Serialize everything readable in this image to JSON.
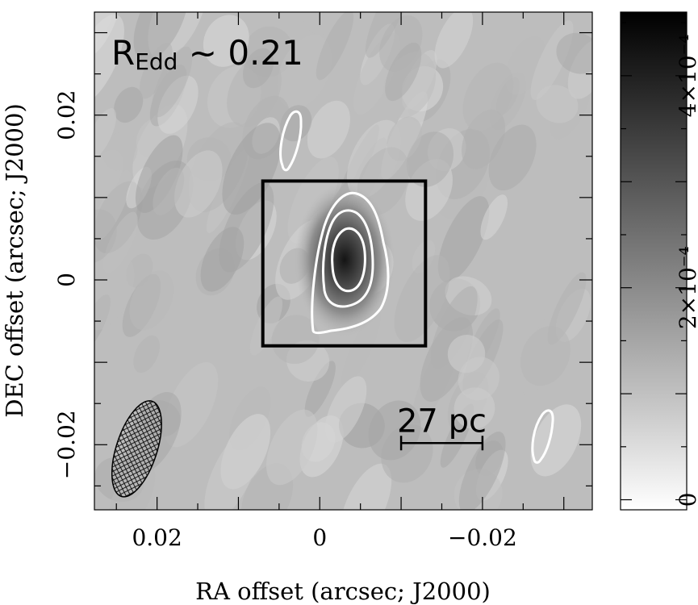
{
  "chart_data": {
    "type": "heatmap",
    "xlabel": "RA offset (arcsec; J2000)",
    "ylabel": "DEC offset (arcsec; J2000)",
    "xlim": [
      0.0277,
      -0.0335
    ],
    "ylim": [
      -0.0279,
      0.0325
    ],
    "x_ticks": [
      0.02,
      0,
      -0.02
    ],
    "x_tick_labels": [
      "0.02",
      "0",
      "−0.02"
    ],
    "y_ticks": [
      0.02,
      0,
      -0.02
    ],
    "y_tick_labels": [
      "0.02",
      "0",
      "−0.02"
    ],
    "annotation": {
      "main": "R",
      "sub": "Edd",
      "rest": " ~ 0.21"
    },
    "scalebar": {
      "label": "27 pc",
      "x_start": -0.01,
      "x_end": -0.02,
      "y": -0.0198
    },
    "box": {
      "x_min": -0.013,
      "x_max": 0.007,
      "y_min": -0.008,
      "y_max": 0.012
    },
    "peak": {
      "x": -0.0035,
      "y": 0.002
    },
    "beam": {
      "x": 0.0225,
      "y": -0.0205,
      "width_major": 0.0123,
      "width_minor": 0.005,
      "hatch": "cross"
    },
    "colorbar": {
      "vmin": -9.5e-06,
      "vmax": 0.00046,
      "ticks": [
        0,
        0.0002,
        0.0004
      ],
      "tick_labels": [
        "0",
        "2×10⁻⁴",
        "4×10⁻⁴"
      ],
      "cmap": "gray_r",
      "color_low": "#ffffff",
      "color_high": "#000000"
    },
    "contours": {
      "color": "#ffffff",
      "levels": 3,
      "outlying_islands": 2
    },
    "grid": false
  }
}
